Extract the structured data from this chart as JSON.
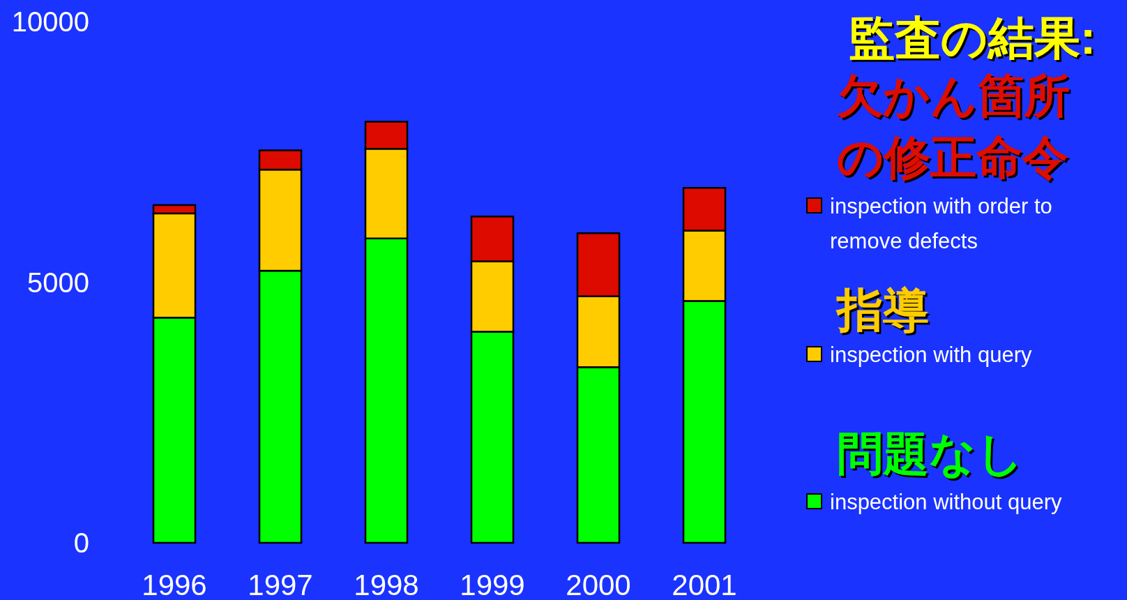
{
  "chart_data": {
    "type": "bar",
    "title": "監査の結果:",
    "stacked": true,
    "legend": "right",
    "categories": [
      "1996",
      "1997",
      "1998",
      "1999",
      "2000",
      "2001"
    ],
    "series": [
      {
        "name": "inspection without query",
        "color": "#00ff00",
        "values": [
          4320,
          5220,
          5840,
          4050,
          3370,
          4640
        ]
      },
      {
        "name": "inspection with query",
        "color": "#ffcc00",
        "values": [
          2000,
          1940,
          1720,
          1350,
          1360,
          1350
        ]
      },
      {
        "name": "inspection with order to remove defects",
        "color": "#dd0a00",
        "values": [
          160,
          370,
          520,
          860,
          1210,
          820
        ]
      }
    ],
    "annotations": [
      "欠かん箇所",
      "の修正命令",
      "指導",
      "問題なし"
    ],
    "ylim": [
      0,
      10000
    ],
    "yticks": [
      0,
      5000,
      10000
    ]
  }
}
